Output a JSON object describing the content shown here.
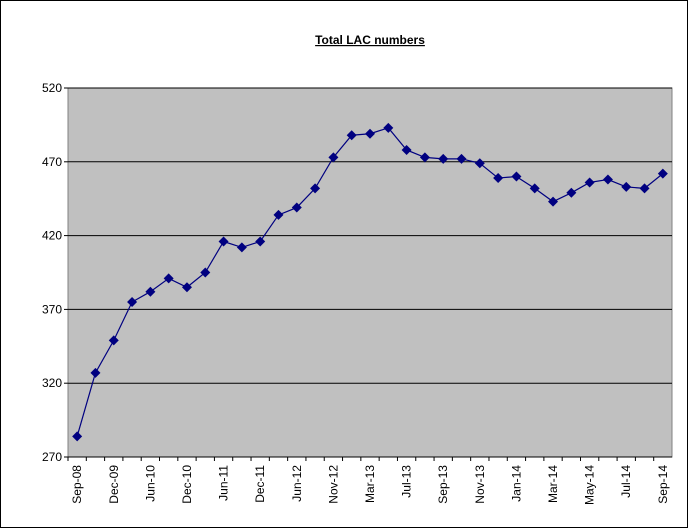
{
  "chart_data": {
    "type": "line",
    "title": "Total  LAC numbers",
    "categories": [
      "Sep-08",
      null,
      "Dec-09",
      null,
      "Jun-10",
      null,
      "Dec-10",
      null,
      "Jun-11",
      null,
      "Dec-11",
      null,
      "Jun-12",
      null,
      "Nov-12",
      null,
      "Mar-13",
      null,
      "Jul-13",
      null,
      "Sep-13",
      null,
      "Nov-13",
      null,
      "Jan-14",
      null,
      "Mar-14",
      null,
      "May-14",
      null,
      "Jul-14",
      null,
      "Sep-14"
    ],
    "series": [
      {
        "name": "Total LAC numbers",
        "color": "#000080",
        "values": [
          284,
          327,
          349,
          375,
          382,
          391,
          385,
          395,
          416,
          412,
          416,
          434,
          439,
          452,
          473,
          488,
          489,
          493,
          478,
          473,
          472,
          472,
          469,
          459,
          460,
          452,
          443,
          449,
          456,
          458,
          453,
          452,
          462
        ]
      }
    ],
    "ylim": [
      270,
      520
    ],
    "yticks": [
      270,
      320,
      370,
      420,
      470,
      520
    ],
    "grid": true,
    "plot_background": "#c0c0c0"
  }
}
